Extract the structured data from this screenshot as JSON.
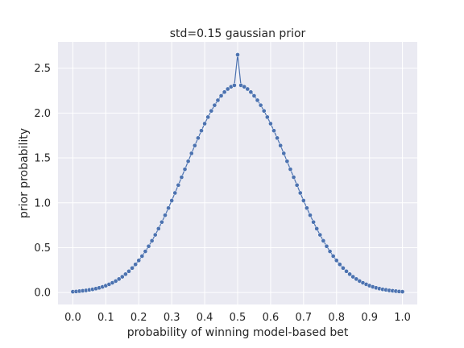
{
  "chart_data": {
    "type": "line",
    "title": "std=0.15 gaussian prior",
    "xlabel": "probability of winning model-based bet",
    "ylabel": "prior probability",
    "xlim": [
      -0.045,
      1.045
    ],
    "ylim": [
      -0.133,
      2.793
    ],
    "xticks": [
      0.0,
      0.1,
      0.2,
      0.3,
      0.4,
      0.5,
      0.6,
      0.7,
      0.8,
      0.9,
      1.0
    ],
    "xtick_labels": [
      "0.0",
      "0.1",
      "0.2",
      "0.3",
      "0.4",
      "0.5",
      "0.6",
      "0.7",
      "0.8",
      "0.9",
      "1.0"
    ],
    "yticks": [
      0.0,
      0.5,
      1.0,
      1.5,
      2.0,
      2.5
    ],
    "ytick_labels": [
      "0.0",
      "0.5",
      "1.0",
      "1.5",
      "2.0",
      "2.5"
    ],
    "grid": true,
    "series": [
      {
        "color": "#4c72b0",
        "marker": "circle",
        "x": [
          0.0,
          0.01,
          0.02,
          0.03,
          0.04,
          0.05,
          0.06,
          0.07,
          0.08,
          0.09,
          0.1,
          0.11,
          0.12,
          0.13,
          0.14,
          0.15,
          0.16,
          0.17,
          0.18,
          0.19,
          0.2,
          0.21,
          0.22,
          0.23,
          0.24,
          0.25,
          0.26,
          0.27,
          0.28,
          0.29,
          0.3,
          0.31,
          0.32,
          0.33,
          0.34,
          0.35,
          0.36,
          0.37,
          0.38,
          0.39,
          0.4,
          0.41,
          0.42,
          0.43,
          0.44,
          0.45,
          0.46,
          0.47,
          0.48,
          0.49,
          0.5,
          0.51,
          0.52,
          0.53,
          0.54,
          0.55,
          0.56,
          0.57,
          0.58,
          0.59,
          0.6,
          0.61,
          0.62,
          0.63,
          0.64,
          0.65,
          0.66,
          0.67,
          0.68,
          0.69,
          0.7,
          0.71,
          0.72,
          0.73,
          0.74,
          0.75,
          0.76,
          0.77,
          0.78,
          0.79,
          0.8,
          0.81,
          0.82,
          0.83,
          0.84,
          0.85,
          0.86,
          0.87,
          0.88,
          0.89,
          0.9,
          0.91,
          0.92,
          0.93,
          0.94,
          0.95,
          0.96,
          0.97,
          0.98,
          0.99,
          1.0
        ],
        "y": [
          0.01,
          0.012,
          0.016,
          0.02,
          0.024,
          0.03,
          0.036,
          0.044,
          0.053,
          0.064,
          0.077,
          0.092,
          0.109,
          0.128,
          0.151,
          0.176,
          0.205,
          0.237,
          0.273,
          0.314,
          0.358,
          0.406,
          0.459,
          0.516,
          0.577,
          0.643,
          0.712,
          0.785,
          0.862,
          0.942,
          1.025,
          1.11,
          1.197,
          1.285,
          1.374,
          1.463,
          1.551,
          1.638,
          1.722,
          1.804,
          1.882,
          1.955,
          2.024,
          2.087,
          2.143,
          2.192,
          2.234,
          2.268,
          2.293,
          2.309,
          2.65,
          2.309,
          2.293,
          2.268,
          2.234,
          2.192,
          2.143,
          2.087,
          2.024,
          1.955,
          1.882,
          1.804,
          1.722,
          1.638,
          1.551,
          1.463,
          1.374,
          1.285,
          1.197,
          1.11,
          1.025,
          0.942,
          0.862,
          0.785,
          0.712,
          0.643,
          0.577,
          0.516,
          0.459,
          0.406,
          0.358,
          0.314,
          0.273,
          0.237,
          0.205,
          0.176,
          0.151,
          0.128,
          0.109,
          0.092,
          0.077,
          0.064,
          0.053,
          0.044,
          0.036,
          0.03,
          0.024,
          0.02,
          0.016,
          0.012,
          0.01
        ]
      }
    ]
  },
  "colors": {
    "plot_background": "#eaeaf2",
    "grid": "#ffffff",
    "series": "#4c72b0",
    "text": "#262626"
  }
}
